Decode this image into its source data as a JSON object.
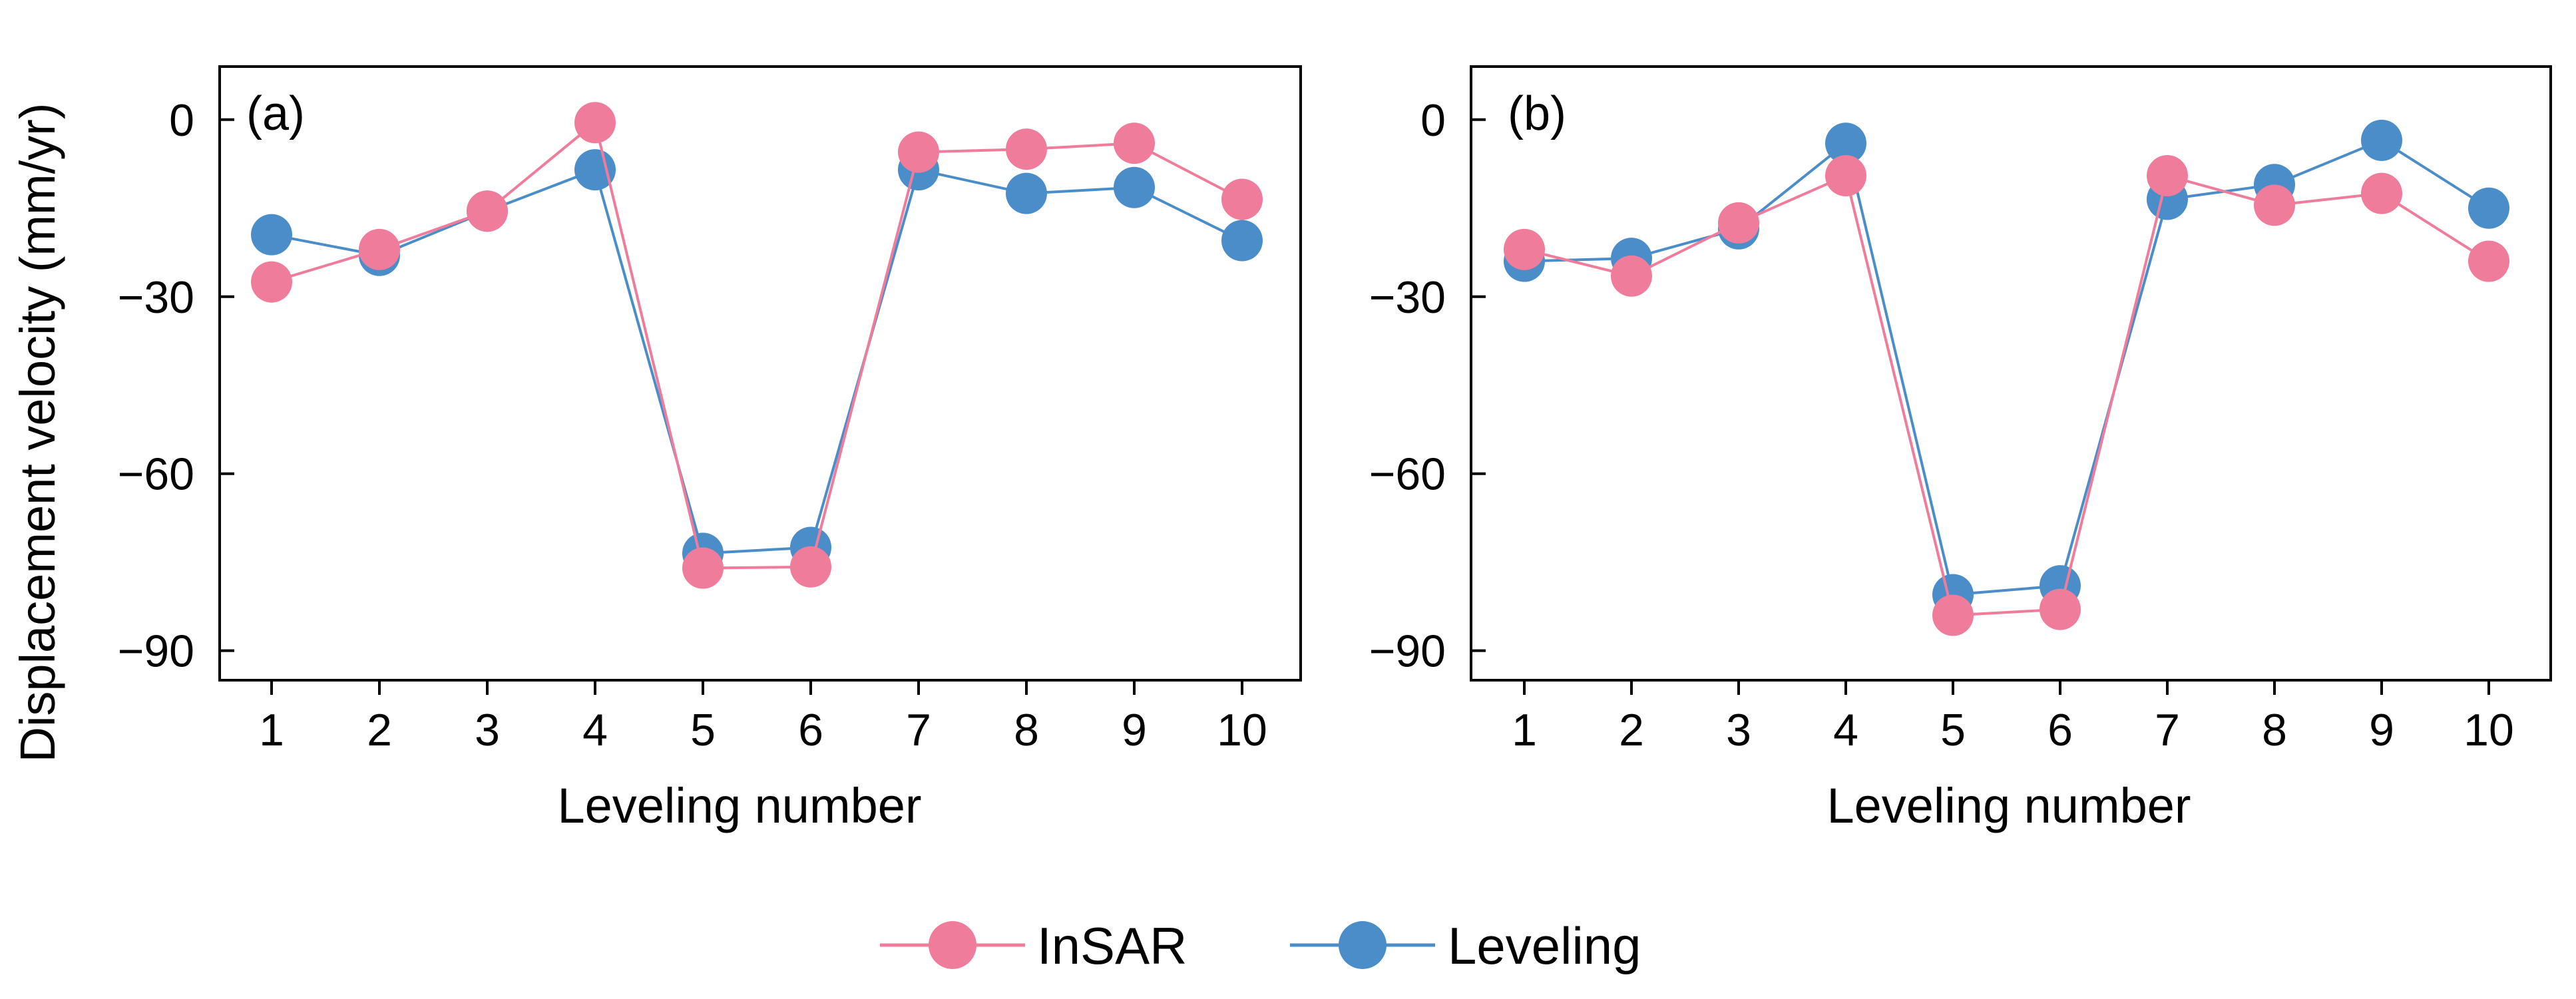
{
  "chart_data": [
    {
      "type": "line",
      "panel_label": "(a)",
      "xlabel": "Leveling number",
      "ylabel": "Displacement velocity (mm/yr)",
      "categories": [
        "1",
        "2",
        "3",
        "4",
        "5",
        "6",
        "7",
        "8",
        "9",
        "10"
      ],
      "ylim": [
        -95,
        9
      ],
      "yticks": [
        0,
        -30,
        -60,
        -90
      ],
      "ytick_labels": [
        "0",
        "−30",
        "−60",
        "−90"
      ],
      "grid": false,
      "series": [
        {
          "name": "InSAR",
          "color": "#F07C9B",
          "values": [
            -27.5,
            -22,
            -15.5,
            -0.5,
            -76,
            -75.8,
            -5.5,
            -5,
            -4,
            -13.5
          ]
        },
        {
          "name": "Leveling",
          "color": "#4A8DC8",
          "values": [
            -19.5,
            -23,
            -15.5,
            -8.5,
            -73.5,
            -72.5,
            -8.5,
            -12.5,
            -11.5,
            -20.5
          ]
        }
      ]
    },
    {
      "type": "line",
      "panel_label": "(b)",
      "xlabel": "Leveling number",
      "ylabel": "",
      "categories": [
        "1",
        "2",
        "3",
        "4",
        "5",
        "6",
        "7",
        "8",
        "9",
        "10"
      ],
      "ylim": [
        -95,
        9
      ],
      "yticks": [
        0,
        -30,
        -60,
        -90
      ],
      "ytick_labels": [
        "0",
        "−30",
        "−60",
        "−90"
      ],
      "grid": false,
      "series": [
        {
          "name": "InSAR",
          "color": "#F07C9B",
          "values": [
            -22,
            -26.5,
            -17.5,
            -9.5,
            -84,
            -83,
            -9.5,
            -14.5,
            -12.5,
            -24
          ]
        },
        {
          "name": "Leveling",
          "color": "#4A8DC8",
          "values": [
            -24,
            -23.5,
            -18.5,
            -4,
            -80.5,
            -79,
            -13.5,
            -11,
            -3.5,
            -15
          ]
        }
      ]
    }
  ],
  "legend": {
    "position": "bottom-center",
    "entries": [
      {
        "label": "InSAR",
        "color": "#F07C9B"
      },
      {
        "label": "Leveling",
        "color": "#4A8DC8"
      }
    ]
  }
}
